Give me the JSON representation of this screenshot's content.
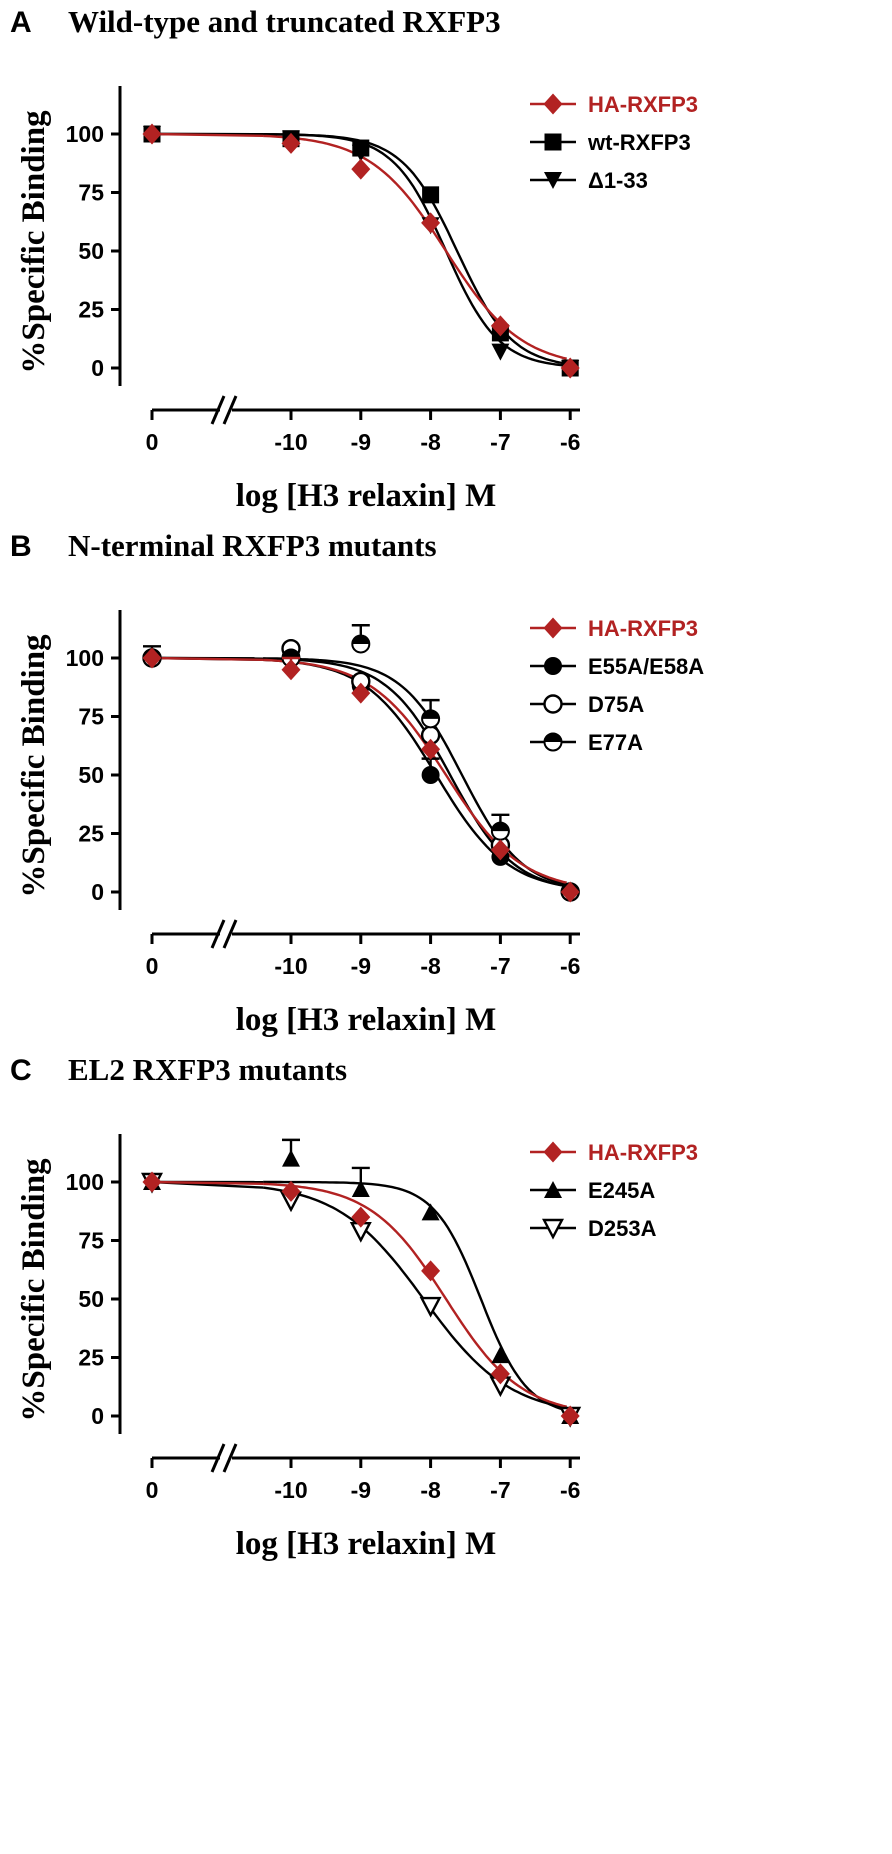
{
  "colors": {
    "red": "#b22222",
    "black": "#000000"
  },
  "chart_data": [
    {
      "panel_letter": "A",
      "type": "scatter",
      "title": "Wild-type and truncated RXFP3",
      "xlabel": "log [H3 relaxin] M",
      "ylabel": "%Specific Binding",
      "x_ticks": [
        "0",
        "-10",
        "-9",
        "-8",
        "-7",
        "-6"
      ],
      "y_ticks": [
        "0",
        "25",
        "50",
        "75",
        "100"
      ],
      "ylim": [
        -5,
        120
      ],
      "axis_break": true,
      "legend_position": "top-right",
      "series": [
        {
          "name": "HA-RXFP3",
          "marker": "diamond",
          "color": "#b22222",
          "points": [
            {
              "x": "0",
              "y": 100
            },
            {
              "x": -10,
              "y": 96
            },
            {
              "x": -9,
              "y": 85
            },
            {
              "x": -8,
              "y": 62
            },
            {
              "x": -7,
              "y": 18
            },
            {
              "x": -6,
              "y": 0
            }
          ],
          "fit": {
            "logEC50": -7.78,
            "hill": 0.8
          }
        },
        {
          "name": "wt-RXFP3",
          "marker": "square",
          "color": "#000000",
          "points": [
            {
              "x": "0",
              "y": 100
            },
            {
              "x": -10,
              "y": 98
            },
            {
              "x": -9,
              "y": 94
            },
            {
              "x": -8,
              "y": 74
            },
            {
              "x": -7,
              "y": 15
            },
            {
              "x": -6,
              "y": 0
            }
          ],
          "fit": {
            "logEC50": -7.62,
            "hill": 1.1
          }
        },
        {
          "name": "Δ1-33",
          "marker": "triangle-down",
          "color": "#000000",
          "points": [
            {
              "x": "0",
              "y": 100
            },
            {
              "x": -10,
              "y": 98
            },
            {
              "x": -9,
              "y": 92
            },
            {
              "x": -8,
              "y": 61
            },
            {
              "x": -7,
              "y": 7
            },
            {
              "x": -6,
              "y": 0
            }
          ],
          "fit": {
            "logEC50": -7.78,
            "hill": 1.15
          }
        }
      ]
    },
    {
      "panel_letter": "B",
      "type": "scatter",
      "title": "N-terminal RXFP3 mutants",
      "xlabel": "log [H3 relaxin] M",
      "ylabel": "%Specific Binding",
      "x_ticks": [
        "0",
        "-10",
        "-9",
        "-8",
        "-7",
        "-6"
      ],
      "y_ticks": [
        "0",
        "25",
        "50",
        "75",
        "100"
      ],
      "ylim": [
        -5,
        120
      ],
      "axis_break": true,
      "legend_position": "top-right",
      "series": [
        {
          "name": "HA-RXFP3",
          "marker": "diamond",
          "color": "#b22222",
          "points": [
            {
              "x": "0",
              "y": 100
            },
            {
              "x": -10,
              "y": 95,
              "err": 5
            },
            {
              "x": -9,
              "y": 85
            },
            {
              "x": -8,
              "y": 61
            },
            {
              "x": -7,
              "y": 18
            },
            {
              "x": -6,
              "y": 0
            }
          ],
          "fit": {
            "logEC50": -7.78,
            "hill": 0.8
          }
        },
        {
          "name": "E55A/E58A",
          "marker": "circle-filled",
          "color": "#000000",
          "points": [
            {
              "x": "0",
              "y": 100,
              "err": 5
            },
            {
              "x": -10,
              "y": 101
            },
            {
              "x": -9,
              "y": 88,
              "err": 4
            },
            {
              "x": -8,
              "y": 50,
              "err": 7
            },
            {
              "x": -7,
              "y": 15
            },
            {
              "x": -6,
              "y": 0
            }
          ],
          "fit": {
            "logEC50": -7.92,
            "hill": 0.85
          }
        },
        {
          "name": "D75A",
          "marker": "circle-open",
          "color": "#000000",
          "points": [
            {
              "x": "0",
              "y": 100
            },
            {
              "x": -10,
              "y": 104
            },
            {
              "x": -9,
              "y": 90
            },
            {
              "x": -8,
              "y": 67
            },
            {
              "x": -7,
              "y": 20
            },
            {
              "x": -6,
              "y": 0
            }
          ],
          "fit": {
            "logEC50": -7.72,
            "hill": 0.95
          }
        },
        {
          "name": "E77A",
          "marker": "circle-half",
          "color": "#000000",
          "points": [
            {
              "x": "0",
              "y": 100
            },
            {
              "x": -10,
              "y": 100
            },
            {
              "x": -9,
              "y": 106,
              "err": 8
            },
            {
              "x": -8,
              "y": 74,
              "err": 8
            },
            {
              "x": -7,
              "y": 26,
              "err": 7
            },
            {
              "x": -6,
              "y": 0
            }
          ],
          "fit": {
            "logEC50": -7.55,
            "hill": 1.0
          }
        }
      ]
    },
    {
      "panel_letter": "C",
      "type": "scatter",
      "title": "EL2 RXFP3 mutants",
      "xlabel": "log [H3 relaxin] M",
      "ylabel": "%Specific Binding",
      "x_ticks": [
        "0",
        "-10",
        "-9",
        "-8",
        "-7",
        "-6"
      ],
      "y_ticks": [
        "0",
        "25",
        "50",
        "75",
        "100"
      ],
      "ylim": [
        -5,
        120
      ],
      "axis_break": true,
      "legend_position": "top-right",
      "series": [
        {
          "name": "HA-RXFP3",
          "marker": "diamond",
          "color": "#b22222",
          "points": [
            {
              "x": "0",
              "y": 100
            },
            {
              "x": -10,
              "y": 96
            },
            {
              "x": -9,
              "y": 85
            },
            {
              "x": -8,
              "y": 62
            },
            {
              "x": -7,
              "y": 18
            },
            {
              "x": -6,
              "y": 0
            }
          ],
          "fit": {
            "logEC50": -7.78,
            "hill": 0.8
          }
        },
        {
          "name": "E245A",
          "marker": "triangle-up",
          "color": "#000000",
          "points": [
            {
              "x": "0",
              "y": 100
            },
            {
              "x": -10,
              "y": 110,
              "err": 8
            },
            {
              "x": -9,
              "y": 97,
              "err": 9
            },
            {
              "x": -8,
              "y": 87
            },
            {
              "x": -7,
              "y": 26
            },
            {
              "x": -6,
              "y": 0
            }
          ],
          "fit": {
            "logEC50": -7.28,
            "hill": 1.3
          }
        },
        {
          "name": "D253A",
          "marker": "triangle-down-open",
          "color": "#000000",
          "points": [
            {
              "x": "0",
              "y": 100
            },
            {
              "x": -10,
              "y": 92
            },
            {
              "x": -9,
              "y": 79
            },
            {
              "x": -8,
              "y": 47
            },
            {
              "x": -7,
              "y": 13
            },
            {
              "x": -6,
              "y": 0
            }
          ],
          "fit": {
            "logEC50": -8.1,
            "hill": 0.7
          }
        }
      ]
    }
  ]
}
